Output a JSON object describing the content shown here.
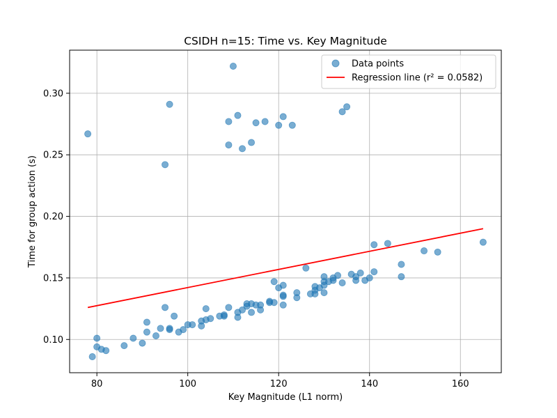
{
  "chart_data": {
    "type": "scatter",
    "title": "CSIDH n=15: Time vs. Key Magnitude",
    "xlabel": "Key Magnitude (L1 norm)",
    "ylabel": "Time for group action (s)",
    "xlim": [
      74,
      169
    ],
    "ylim": [
      0.073,
      0.335
    ],
    "xticks": [
      80,
      100,
      120,
      140,
      160
    ],
    "xtick_labels": [
      "80",
      "100",
      "120",
      "140",
      "160"
    ],
    "yticks": [
      0.1,
      0.15,
      0.2,
      0.25,
      0.3
    ],
    "ytick_labels": [
      "0.10",
      "0.15",
      "0.20",
      "0.25",
      "0.30"
    ],
    "grid": true,
    "legend_position": "top-right",
    "series": [
      {
        "name": "Data points",
        "kind": "scatter",
        "color": "#1f77b4",
        "points": [
          [
            78,
            0.267
          ],
          [
            79,
            0.086
          ],
          [
            80,
            0.101
          ],
          [
            80,
            0.094
          ],
          [
            81,
            0.092
          ],
          [
            82,
            0.091
          ],
          [
            86,
            0.095
          ],
          [
            88,
            0.101
          ],
          [
            90,
            0.097
          ],
          [
            91,
            0.114
          ],
          [
            91,
            0.106
          ],
          [
            93,
            0.103
          ],
          [
            94,
            0.109
          ],
          [
            95,
            0.126
          ],
          [
            95,
            0.242
          ],
          [
            96,
            0.291
          ],
          [
            96,
            0.109
          ],
          [
            96,
            0.108
          ],
          [
            97,
            0.119
          ],
          [
            98,
            0.106
          ],
          [
            99,
            0.108
          ],
          [
            100,
            0.112
          ],
          [
            101,
            0.112
          ],
          [
            103,
            0.115
          ],
          [
            103,
            0.111
          ],
          [
            104,
            0.125
          ],
          [
            104,
            0.116
          ],
          [
            105,
            0.117
          ],
          [
            107,
            0.119
          ],
          [
            108,
            0.12
          ],
          [
            108,
            0.119
          ],
          [
            109,
            0.126
          ],
          [
            109,
            0.258
          ],
          [
            109,
            0.277
          ],
          [
            110,
            0.322
          ],
          [
            111,
            0.282
          ],
          [
            111,
            0.122
          ],
          [
            111,
            0.118
          ],
          [
            112,
            0.255
          ],
          [
            112,
            0.124
          ],
          [
            113,
            0.129
          ],
          [
            113,
            0.127
          ],
          [
            114,
            0.26
          ],
          [
            114,
            0.122
          ],
          [
            114,
            0.129
          ],
          [
            115,
            0.276
          ],
          [
            115,
            0.128
          ],
          [
            116,
            0.128
          ],
          [
            116,
            0.124
          ],
          [
            117,
            0.277
          ],
          [
            118,
            0.131
          ],
          [
            118,
            0.13
          ],
          [
            119,
            0.147
          ],
          [
            119,
            0.13
          ],
          [
            120,
            0.142
          ],
          [
            120,
            0.274
          ],
          [
            121,
            0.281
          ],
          [
            121,
            0.144
          ],
          [
            121,
            0.136
          ],
          [
            121,
            0.135
          ],
          [
            121,
            0.128
          ],
          [
            123,
            0.274
          ],
          [
            124,
            0.138
          ],
          [
            124,
            0.134
          ],
          [
            126,
            0.158
          ],
          [
            127,
            0.137
          ],
          [
            128,
            0.143
          ],
          [
            128,
            0.14
          ],
          [
            128,
            0.137
          ],
          [
            129,
            0.142
          ],
          [
            130,
            0.151
          ],
          [
            130,
            0.147
          ],
          [
            130,
            0.144
          ],
          [
            130,
            0.138
          ],
          [
            131,
            0.147
          ],
          [
            132,
            0.15
          ],
          [
            132,
            0.148
          ],
          [
            133,
            0.152
          ],
          [
            134,
            0.146
          ],
          [
            134,
            0.285
          ],
          [
            135,
            0.289
          ],
          [
            136,
            0.153
          ],
          [
            137,
            0.151
          ],
          [
            137,
            0.148
          ],
          [
            138,
            0.154
          ],
          [
            139,
            0.148
          ],
          [
            140,
            0.15
          ],
          [
            141,
            0.155
          ],
          [
            141,
            0.177
          ],
          [
            144,
            0.178
          ],
          [
            147,
            0.161
          ],
          [
            147,
            0.151
          ],
          [
            152,
            0.172
          ],
          [
            155,
            0.171
          ],
          [
            165,
            0.179
          ]
        ]
      },
      {
        "name": "Regression line (r² = 0.0582)",
        "kind": "line",
        "color": "#ff0000",
        "x": [
          78,
          165
        ],
        "y": [
          0.126,
          0.19
        ]
      }
    ]
  }
}
